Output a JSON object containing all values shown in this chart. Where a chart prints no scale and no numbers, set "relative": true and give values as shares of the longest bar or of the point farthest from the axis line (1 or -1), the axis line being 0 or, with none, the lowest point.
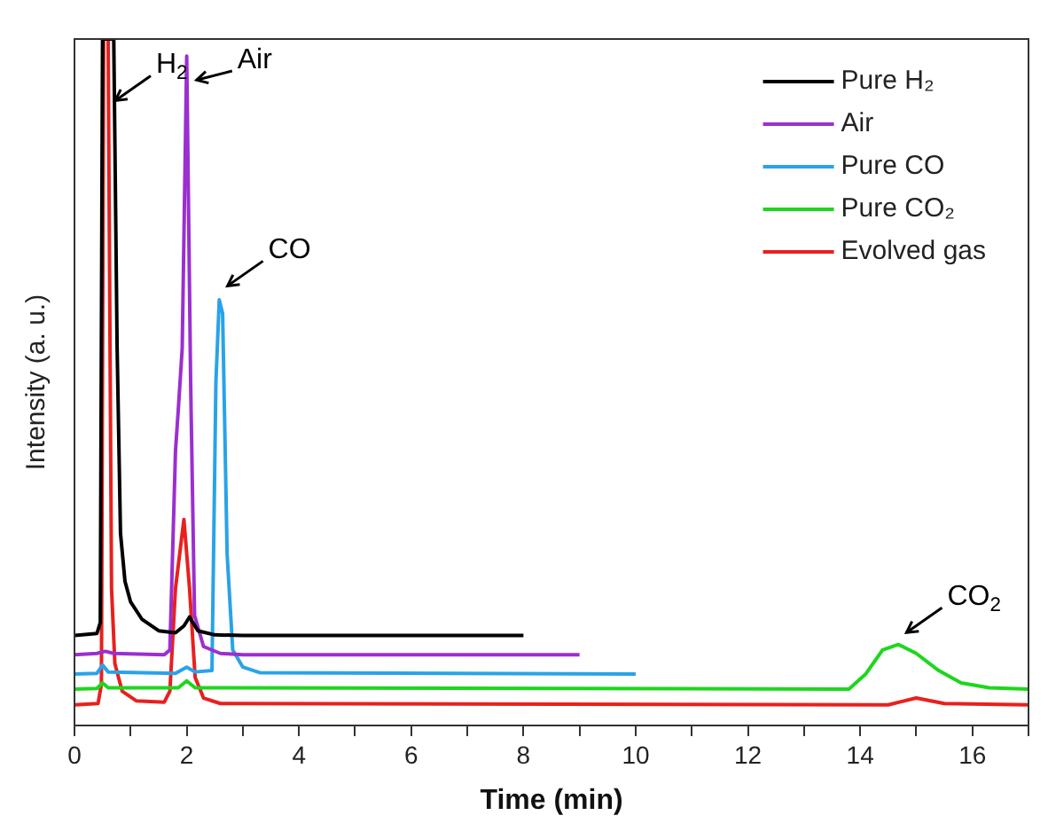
{
  "chart_data": {
    "type": "line",
    "xlabel": "Time (min)",
    "ylabel": "Intensity (a. u.)",
    "relative": true,
    "xlim": [
      0,
      17
    ],
    "xticks": [
      0,
      {
        "value": 1,
        "label": null
      },
      2,
      {
        "value": 3,
        "label": null
      },
      4,
      {
        "value": 5,
        "label": null
      },
      6,
      {
        "value": 7,
        "label": null
      },
      8,
      {
        "value": 9,
        "label": null
      },
      10,
      {
        "value": 11,
        "label": null
      },
      12,
      {
        "value": 13,
        "label": null
      },
      14,
      {
        "value": 15,
        "label": null
      },
      16,
      {
        "value": 17,
        "label": null
      }
    ],
    "grid": false,
    "legend": "top right",
    "marker": "none",
    "line_style": "solid",
    "annotations": [
      {
        "text": "H$_{2}$",
        "x": 0.6,
        "y": 0.9
      },
      {
        "text": "Air",
        "x": 2.05,
        "y": 0.93
      },
      {
        "text": "CO",
        "x": 2.6,
        "y": 0.63
      },
      {
        "text": "CO$_{2}$",
        "x": 14.7,
        "y": 0.125
      }
    ],
    "series": [
      {
        "name": "Pure H₂",
        "color": "#000000",
        "x": [
          0,
          0.4,
          0.46,
          0.5,
          0.7,
          0.76,
          0.82,
          0.9,
          1.0,
          1.2,
          1.5,
          1.8,
          1.95,
          2.05,
          2.2,
          2.5,
          3,
          8
        ],
        "values": [
          0.131,
          0.134,
          0.15,
          1,
          1,
          0.55,
          0.28,
          0.21,
          0.18,
          0.155,
          0.138,
          0.135,
          0.145,
          0.158,
          0.138,
          0.132,
          0.131,
          0.131
        ]
      },
      {
        "name": "Air",
        "color": "#9b2fcf",
        "x": [
          0,
          0.4,
          0.55,
          0.7,
          1.6,
          1.7,
          1.8,
          1.85,
          1.92,
          2.0,
          2.07,
          2.14,
          2.3,
          2.6,
          3,
          9
        ],
        "values": [
          0.103,
          0.105,
          0.108,
          0.105,
          0.103,
          0.11,
          0.4,
          0.46,
          0.55,
          0.975,
          0.5,
          0.16,
          0.115,
          0.105,
          0.103,
          0.103
        ]
      },
      {
        "name": "Pure CO",
        "color": "#29a3e8",
        "x": [
          0,
          0.4,
          0.5,
          0.6,
          1.8,
          2.0,
          2.15,
          2.45,
          2.52,
          2.58,
          2.64,
          2.72,
          2.82,
          3.0,
          3.3,
          10
        ],
        "values": [
          0.075,
          0.076,
          0.088,
          0.078,
          0.076,
          0.085,
          0.078,
          0.08,
          0.5,
          0.62,
          0.6,
          0.25,
          0.11,
          0.085,
          0.077,
          0.075
        ]
      },
      {
        "name": "Pure CO₂",
        "color": "#1ed61e",
        "x": [
          0,
          0.4,
          0.5,
          0.6,
          1.85,
          2.0,
          2.15,
          13.8,
          14.1,
          14.4,
          14.68,
          15.0,
          15.4,
          15.8,
          16.3,
          17
        ],
        "values": [
          0.053,
          0.054,
          0.062,
          0.055,
          0.055,
          0.065,
          0.055,
          0.053,
          0.075,
          0.11,
          0.118,
          0.105,
          0.08,
          0.062,
          0.055,
          0.053
        ]
      },
      {
        "name": "Evolved gas",
        "color": "#e8201e",
        "x": [
          0,
          0.42,
          0.48,
          0.52,
          0.6,
          0.66,
          0.72,
          0.85,
          1.1,
          1.6,
          1.7,
          1.8,
          1.95,
          2.05,
          2.15,
          2.3,
          2.6,
          14.5,
          15.0,
          15.5,
          17
        ],
        "values": [
          0.03,
          0.032,
          0.06,
          1,
          1,
          0.2,
          0.09,
          0.05,
          0.036,
          0.034,
          0.05,
          0.2,
          0.3,
          0.2,
          0.07,
          0.04,
          0.032,
          0.03,
          0.04,
          0.032,
          0.03
        ]
      }
    ]
  }
}
